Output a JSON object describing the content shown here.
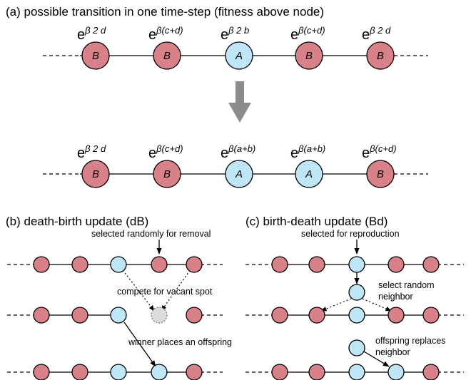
{
  "panel_a": {
    "title": "(a) possible transition in one time-step (fitness above node)",
    "row1": {
      "nodes": [
        "B",
        "B",
        "A",
        "B",
        "B"
      ],
      "fitness": [
        {
          "base": "e",
          "exp": "β 2 d"
        },
        {
          "base": "e",
          "exp": "β(c+d)"
        },
        {
          "base": "e",
          "exp": "β 2 b"
        },
        {
          "base": "e",
          "exp": "β(c+d)"
        },
        {
          "base": "e",
          "exp": "β 2 d"
        }
      ]
    },
    "row2": {
      "nodes": [
        "B",
        "B",
        "A",
        "A",
        "B"
      ],
      "fitness": [
        {
          "base": "e",
          "exp": "β 2 d"
        },
        {
          "base": "e",
          "exp": "β(c+d)"
        },
        {
          "base": "e",
          "exp": "β(a+b)"
        },
        {
          "base": "e",
          "exp": "β(a+b)"
        },
        {
          "base": "e",
          "exp": "β(c+d)"
        }
      ]
    }
  },
  "panel_b": {
    "title": "(b) death-birth update (dB)",
    "label_removal": "selected randomly for removal",
    "label_compete": "compete for vacant spot",
    "label_winner": "winner places an offspring"
  },
  "panel_c": {
    "title": "(c) birth-death update (Bd)",
    "label_reproduction": "selected for reproduction",
    "label_select_1": "select random",
    "label_select_2": "neighbor",
    "label_offspring_1": "offspring replaces",
    "label_offspring_2": "neighbor"
  },
  "colors": {
    "strategy_B": "#d98189",
    "strategy_A": "#bfe6f7",
    "vacant": "#dcdcdc",
    "transition_arrow": "#8c8c8c"
  }
}
